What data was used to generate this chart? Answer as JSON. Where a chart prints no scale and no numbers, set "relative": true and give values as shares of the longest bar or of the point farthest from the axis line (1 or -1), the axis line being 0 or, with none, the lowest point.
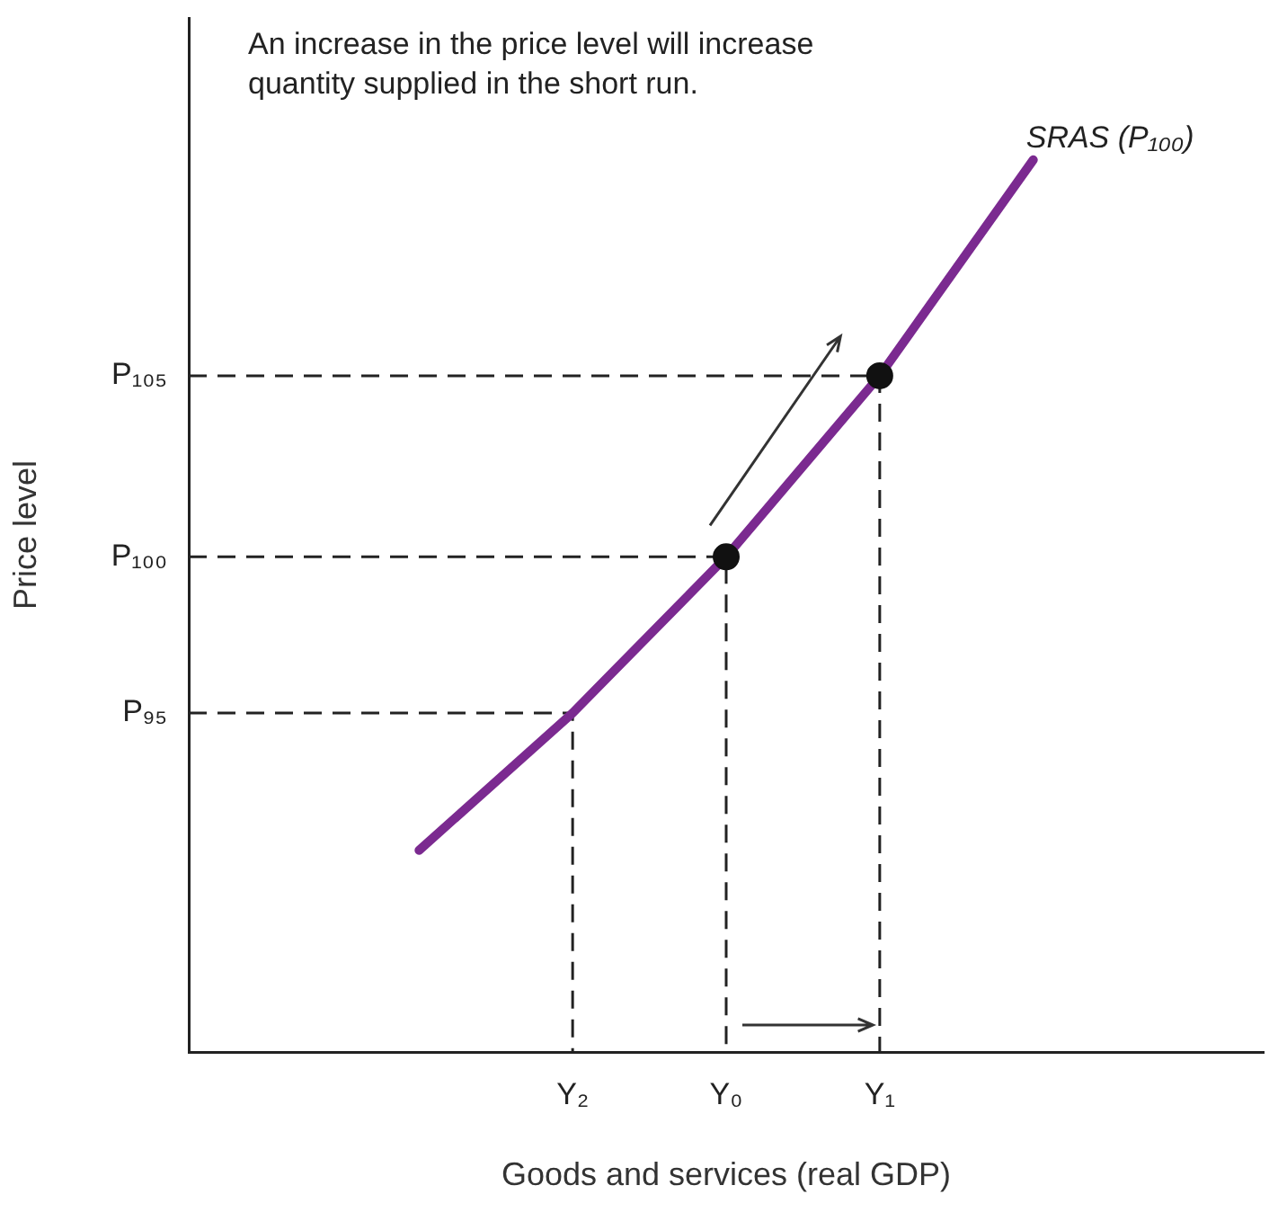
{
  "chart_data": {
    "type": "line",
    "relative": true,
    "xlabel": "Goods and services (real GDP)",
    "ylabel": "Price level",
    "categories": [
      null,
      null,
      "Y₂",
      "Y₀",
      "Y₁",
      null,
      null
    ],
    "annotations": [
      "An increase in the price level will increase quantity supplied in the short run.",
      "P₉₅",
      "P₁₀₀",
      "P₁₀₅"
    ],
    "legend": false,
    "series": [
      {
        "name": "SRAS (P₁₀₀)",
        "color": "#7b2a90",
        "values": [
          null,
          0.226,
          0.38,
          0.555,
          0.758,
          1,
          null
        ],
        "line_style": "solid",
        "marker": "none"
      },
      {
        "type": "scatter",
        "color": "#111111",
        "x": [
          "Y₀",
          "Y₁"
        ],
        "values": [
          0.555,
          0.758
        ],
        "marker": "circle"
      }
    ]
  }
}
